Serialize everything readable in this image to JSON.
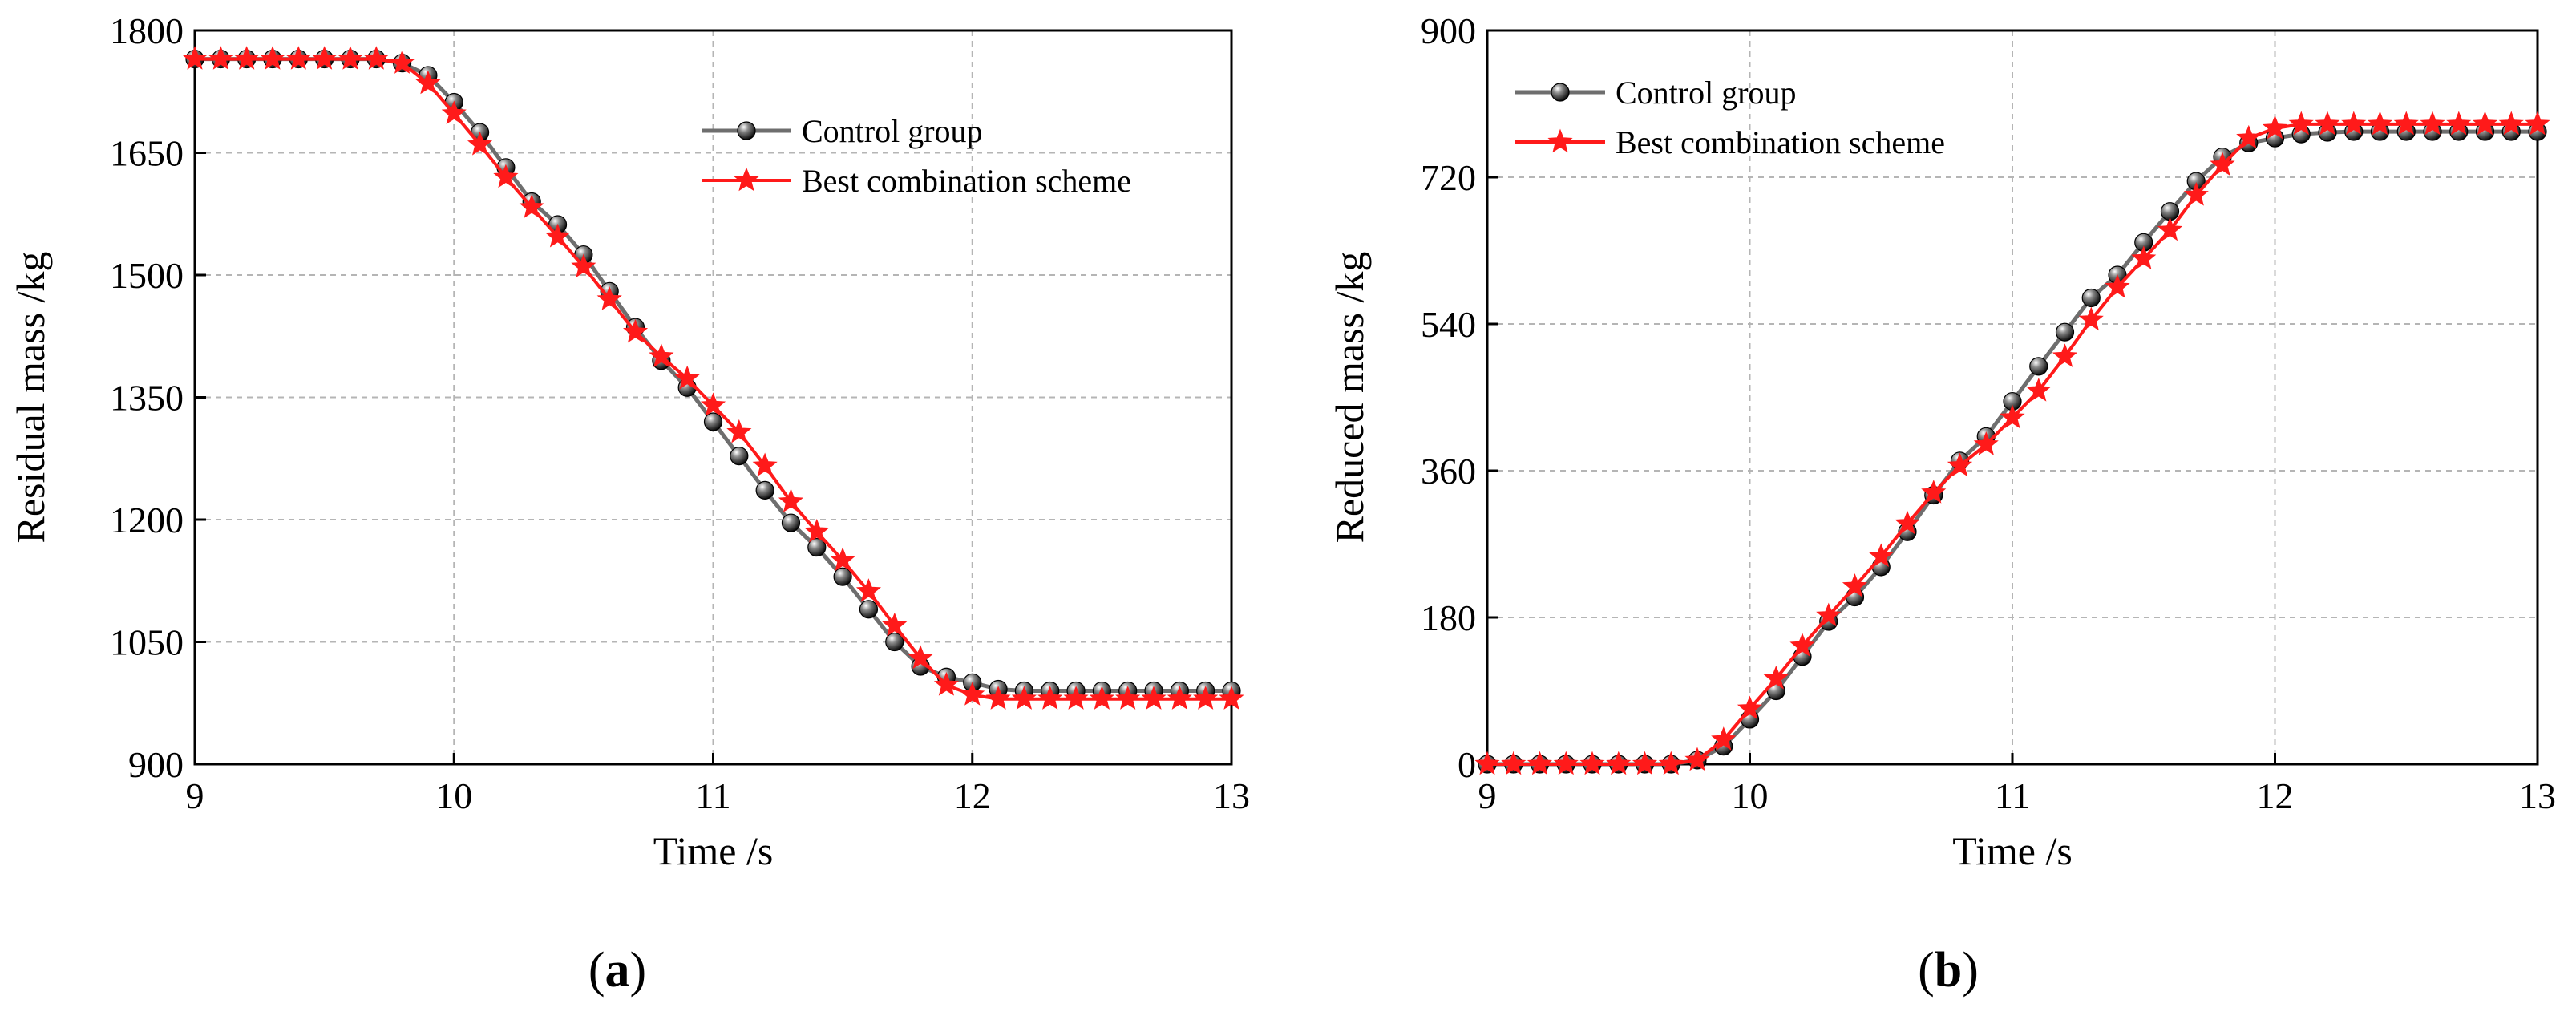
{
  "chart_data": [
    {
      "type": "line",
      "panel_label": "(a)",
      "panel_letter": "a",
      "title": "",
      "xlabel": "Time /s",
      "ylabel": "Residual mass /kg",
      "xlim": [
        9,
        13
      ],
      "ylim": [
        900,
        1800
      ],
      "xticks": [
        9,
        10,
        11,
        12,
        13
      ],
      "yticks": [
        900,
        1050,
        1200,
        1350,
        1500,
        1650,
        1800
      ],
      "grid": true,
      "legend_position": "top-right",
      "x": [
        9.0,
        9.1,
        9.2,
        9.3,
        9.4,
        9.5,
        9.6,
        9.7,
        9.8,
        9.9,
        10.0,
        10.1,
        10.2,
        10.3,
        10.4,
        10.5,
        10.6,
        10.7,
        10.8,
        10.9,
        11.0,
        11.1,
        11.2,
        11.3,
        11.4,
        11.5,
        11.6,
        11.7,
        11.8,
        11.9,
        12.0,
        12.1,
        12.2,
        12.3,
        12.4,
        12.5,
        12.6,
        12.7,
        12.8,
        12.9,
        13.0
      ],
      "series": [
        {
          "name": "Control group",
          "color": "#6e6e6e",
          "marker": "sphere",
          "values": [
            1765,
            1765,
            1765,
            1765,
            1765,
            1765,
            1765,
            1765,
            1760,
            1745,
            1712,
            1675,
            1632,
            1590,
            1562,
            1525,
            1480,
            1436,
            1395,
            1362,
            1320,
            1278,
            1236,
            1196,
            1166,
            1130,
            1090,
            1050,
            1020,
            1007,
            1000,
            992,
            990,
            990,
            990,
            990,
            990,
            990,
            990,
            990,
            990
          ]
        },
        {
          "name": "Best combination scheme",
          "color": "#ff1a1a",
          "marker": "star",
          "values": [
            1765,
            1765,
            1765,
            1765,
            1765,
            1765,
            1765,
            1765,
            1760,
            1735,
            1698,
            1660,
            1620,
            1583,
            1547,
            1510,
            1470,
            1430,
            1400,
            1373,
            1340,
            1307,
            1266,
            1222,
            1185,
            1150,
            1112,
            1070,
            1030,
            997,
            985,
            980,
            980,
            980,
            980,
            980,
            980,
            980,
            980,
            980,
            980
          ]
        }
      ]
    },
    {
      "type": "line",
      "panel_label": "(b)",
      "panel_letter": "b",
      "title": "",
      "xlabel": "Time /s",
      "ylabel": "Reduced mass /kg",
      "xlim": [
        9,
        13
      ],
      "ylim": [
        0,
        900
      ],
      "xticks": [
        9,
        10,
        11,
        12,
        13
      ],
      "yticks": [
        0,
        180,
        360,
        540,
        720,
        900
      ],
      "grid": true,
      "legend_position": "top-left",
      "x": [
        9.0,
        9.1,
        9.2,
        9.3,
        9.4,
        9.5,
        9.6,
        9.7,
        9.8,
        9.9,
        10.0,
        10.1,
        10.2,
        10.3,
        10.4,
        10.5,
        10.6,
        10.7,
        10.8,
        10.9,
        11.0,
        11.1,
        11.2,
        11.3,
        11.4,
        11.5,
        11.6,
        11.7,
        11.8,
        11.9,
        12.0,
        12.1,
        12.2,
        12.3,
        12.4,
        12.5,
        12.6,
        12.7,
        12.8,
        12.9,
        13.0
      ],
      "series": [
        {
          "name": "Control group",
          "color": "#6e6e6e",
          "marker": "sphere",
          "values": [
            0,
            0,
            0,
            0,
            0,
            0,
            0,
            0,
            5,
            22,
            55,
            90,
            132,
            175,
            205,
            242,
            285,
            330,
            372,
            402,
            445,
            488,
            530,
            572,
            600,
            640,
            678,
            715,
            745,
            762,
            768,
            773,
            775,
            776,
            776,
            776,
            776,
            776,
            776,
            776,
            776
          ]
        },
        {
          "name": "Best combination scheme",
          "color": "#ff1a1a",
          "marker": "star",
          "values": [
            0,
            0,
            0,
            0,
            0,
            0,
            0,
            0,
            5,
            30,
            68,
            105,
            145,
            182,
            218,
            255,
            295,
            333,
            366,
            392,
            425,
            458,
            500,
            545,
            585,
            620,
            655,
            698,
            735,
            768,
            780,
            785,
            785,
            785,
            785,
            785,
            785,
            785,
            785,
            785,
            785
          ]
        }
      ]
    }
  ]
}
